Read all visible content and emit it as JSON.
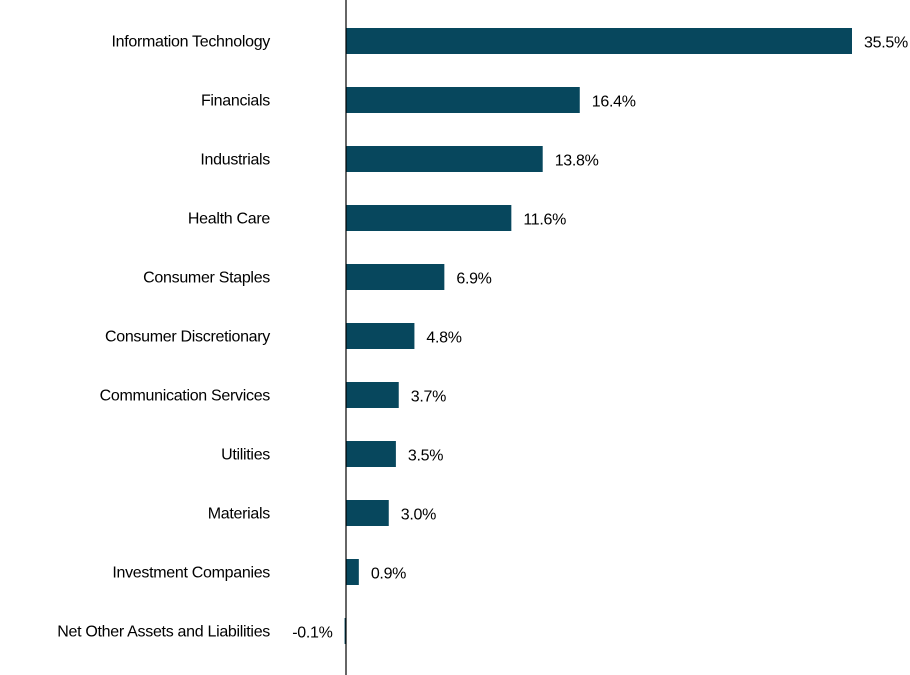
{
  "chart_data": {
    "type": "bar",
    "orientation": "horizontal",
    "categories": [
      "Information Technology",
      "Financials",
      "Industrials",
      "Health Care",
      "Consumer Staples",
      "Consumer Discretionary",
      "Communication Services",
      "Utilities",
      "Materials",
      "Investment Companies",
      "Net Other Assets and Liabilities"
    ],
    "values": [
      35.5,
      16.4,
      13.8,
      11.6,
      6.9,
      4.8,
      3.7,
      3.5,
      3.0,
      0.9,
      -0.1
    ],
    "value_labels": [
      "35.5%",
      "16.4%",
      "13.8%",
      "11.6%",
      "6.9%",
      "4.8%",
      "3.7%",
      "3.5%",
      "3.0%",
      "0.9%",
      "-0.1%"
    ],
    "title": "",
    "xlabel": "",
    "ylabel": "",
    "xlim": [
      0,
      35.5
    ],
    "grid": false,
    "legend": "none",
    "bar_color": "#07475d",
    "axis_color": "#000000"
  }
}
